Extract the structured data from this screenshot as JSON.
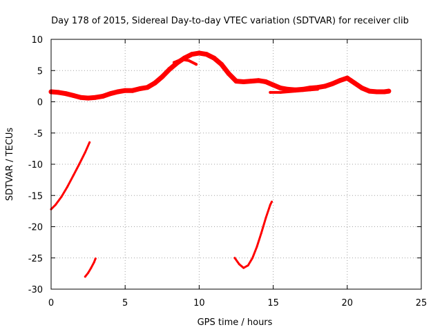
{
  "chart_data": {
    "type": "scatter",
    "title": "Day 178 of 2015, Sidereal Day-to-day VTEC variation (SDTVAR) for receiver clib",
    "xlabel": "GPS time / hours",
    "ylabel": "SDTVAR / TECUs",
    "xlim": [
      0,
      25
    ],
    "ylim": [
      -30,
      10
    ],
    "xticks": [
      0,
      5,
      10,
      15,
      20,
      25
    ],
    "yticks": [
      -30,
      -25,
      -20,
      -15,
      -10,
      -5,
      0,
      5,
      10
    ],
    "grid": true,
    "legend": "none",
    "color": "#ff0000",
    "series": [
      {
        "name": "main-band",
        "x": [
          0,
          0.5,
          1,
          1.5,
          2,
          2.5,
          3,
          3.5,
          4,
          4.5,
          5,
          5.5,
          6,
          6.5,
          7,
          7.5,
          8,
          8.5,
          9,
          9.5,
          10,
          10.5,
          11,
          11.5,
          12,
          12.5,
          13,
          13.5,
          14,
          14.5,
          15,
          15.5,
          16,
          16.5,
          17,
          17.5,
          18,
          18.5,
          19,
          19.5,
          20,
          20.5,
          21,
          21.5,
          22,
          22.5,
          22.8
        ],
        "y": [
          1.6,
          1.5,
          1.3,
          1.0,
          0.7,
          0.6,
          0.7,
          0.9,
          1.3,
          1.6,
          1.8,
          1.8,
          2.1,
          2.3,
          3.0,
          4.0,
          5.2,
          6.2,
          7.0,
          7.6,
          7.8,
          7.6,
          7.0,
          6.0,
          4.5,
          3.3,
          3.2,
          3.3,
          3.4,
          3.2,
          2.7,
          2.2,
          2.0,
          1.9,
          2.0,
          2.2,
          2.3,
          2.5,
          2.9,
          3.4,
          3.8,
          3.0,
          2.2,
          1.7,
          1.6,
          1.6,
          1.7
        ],
        "width": 7
      },
      {
        "name": "band-lower-branch",
        "x": [
          14.8,
          15.5,
          16,
          16.5,
          17,
          17.5,
          18
        ],
        "y": [
          1.5,
          1.5,
          1.6,
          1.7,
          1.8,
          1.9,
          2.0
        ],
        "width": 4
      },
      {
        "name": "band-upper-branch",
        "x": [
          8.3,
          8.8,
          9.3,
          9.8
        ],
        "y": [
          6.3,
          6.8,
          6.6,
          6.0
        ],
        "width": 4
      },
      {
        "name": "arc-early",
        "x": [
          0,
          0.3,
          0.7,
          1.1,
          1.5,
          1.9,
          2.3,
          2.6
        ],
        "y": [
          -17.2,
          -16.5,
          -15.2,
          -13.6,
          -11.8,
          -10.0,
          -8.1,
          -6.5
        ],
        "width": 3
      },
      {
        "name": "arc-small",
        "x": [
          2.3,
          2.5,
          2.7,
          2.9,
          3.0
        ],
        "y": [
          -28.0,
          -27.4,
          -26.6,
          -25.7,
          -25.1
        ],
        "width": 3
      },
      {
        "name": "arc-mid",
        "x": [
          12.4,
          12.7,
          13.0,
          13.3,
          13.6,
          13.9,
          14.2,
          14.5,
          14.8,
          14.9
        ],
        "y": [
          -25.0,
          -26.0,
          -26.6,
          -26.2,
          -25.0,
          -23.2,
          -21.0,
          -18.6,
          -16.5,
          -16.0
        ],
        "width": 3
      }
    ]
  }
}
